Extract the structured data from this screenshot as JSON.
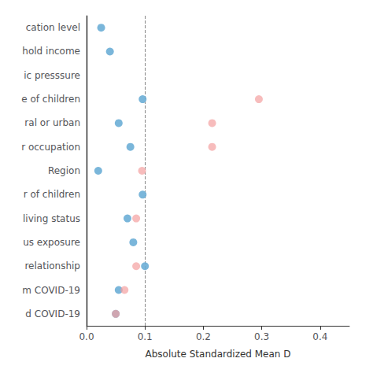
{
  "chart_data": {
    "type": "scatter",
    "marker": "circle",
    "categories": [
      "cation level",
      "hold income",
      "ic presssure",
      "e of children",
      "ral or urban",
      "r occupation",
      "Region",
      "r of children",
      "living status",
      "us exposure",
      "relationship",
      "m COVID-19",
      "d COVID-19"
    ],
    "series": [
      {
        "color": "#6baed6",
        "values": [
          0.025,
          0.04,
          null,
          0.096,
          0.055,
          0.075,
          0.02,
          0.096,
          0.07,
          0.08,
          0.1,
          0.055,
          0.05
        ]
      },
      {
        "color": "#f4a0a0",
        "values": [
          null,
          null,
          null,
          0.295,
          0.215,
          0.215,
          0.095,
          null,
          0.085,
          null,
          0.085,
          0.065,
          0.05
        ]
      }
    ],
    "reference_lines": [
      {
        "x": 0.1,
        "line_style": "dashed"
      }
    ],
    "xlabel": "Absolute Standardized Mean D",
    "xlim": [
      0.0,
      0.45
    ],
    "xticks": [
      {
        "value": 0.0,
        "label": "0.0"
      },
      0.1,
      0.2,
      0.3,
      0.4
    ],
    "grid": false
  }
}
